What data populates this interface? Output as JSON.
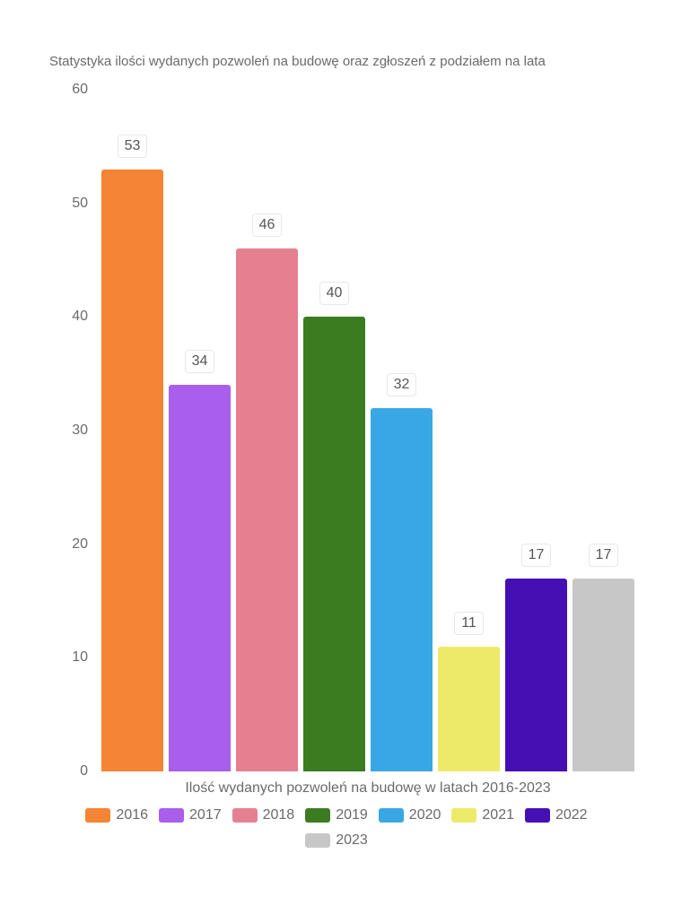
{
  "chart": {
    "type": "bar",
    "title": "Statystyka ilości wydanych pozwoleń na budowę oraz zgłoszeń z podziałem na lata",
    "title_fontsize": 15,
    "title_color": "#6a6a6a",
    "background_color": "#ffffff",
    "ylim": [
      0,
      60
    ],
    "ytick_step": 10,
    "y_ticks": [
      0,
      10,
      20,
      30,
      40,
      50,
      60
    ],
    "axis_label_color": "#6a6a6a",
    "axis_label_fontsize": 16,
    "x_label": "Ilość wydanych pozwoleń na budowę w latach 2016-2023",
    "series": [
      {
        "year": "2016",
        "value": 53,
        "color": "#f58434"
      },
      {
        "year": "2017",
        "value": 34,
        "color": "#a95eec"
      },
      {
        "year": "2018",
        "value": 46,
        "color": "#e58091"
      },
      {
        "year": "2019",
        "value": 40,
        "color": "#3b7c21"
      },
      {
        "year": "2020",
        "value": 32,
        "color": "#3aa7e5"
      },
      {
        "year": "2021",
        "value": 11,
        "color": "#eeea69"
      },
      {
        "year": "2022",
        "value": 17,
        "color": "#4410b4"
      },
      {
        "year": "2023",
        "value": 17,
        "color": "#c7c7c7"
      }
    ],
    "bar_label_bg": "#ffffff",
    "bar_label_border": "#e8e8e8",
    "bar_label_color": "#555555",
    "bar_label_fontsize": 16,
    "bar_border_radius": 3,
    "legend_swatch_width": 28,
    "legend_swatch_height": 16
  }
}
